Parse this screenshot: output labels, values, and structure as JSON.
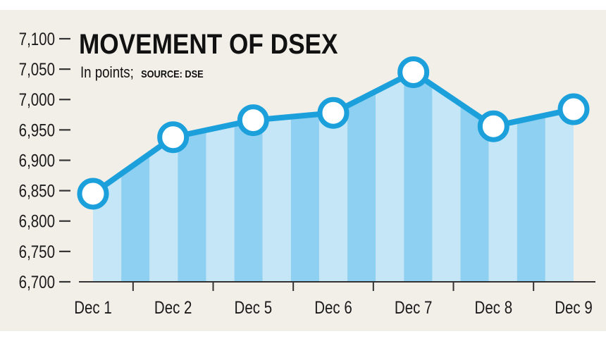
{
  "chart_data": {
    "type": "line",
    "title": "MOVEMENT OF DSEX",
    "subtitle": "In points;",
    "source": "SOURCE: DSE",
    "categories": [
      "Dec 1",
      "Dec 2",
      "Dec 5",
      "Dec 6",
      "Dec 7",
      "Dec 8",
      "Dec 9"
    ],
    "series": [
      {
        "values": [
          6845,
          6938,
          6966,
          6978,
          7045,
          6956,
          6984
        ]
      }
    ],
    "ylim": [
      6700,
      7100
    ],
    "yticks": [
      6700,
      6750,
      6800,
      6850,
      6900,
      6950,
      7000,
      7050,
      7100
    ],
    "ytick_labels": [
      "6,700",
      "6,750",
      "6,800",
      "6,850",
      "6,900",
      "6,950",
      "7,000",
      "7,050",
      "7,100"
    ],
    "grid": false,
    "colors": {
      "background": "#f2efe9",
      "line": "#1ba0dc",
      "marker_fill": "#ffffff",
      "stripe_light": "#c4e6f7",
      "stripe_dark": "#8ed0f1",
      "axis": "#333333"
    }
  }
}
